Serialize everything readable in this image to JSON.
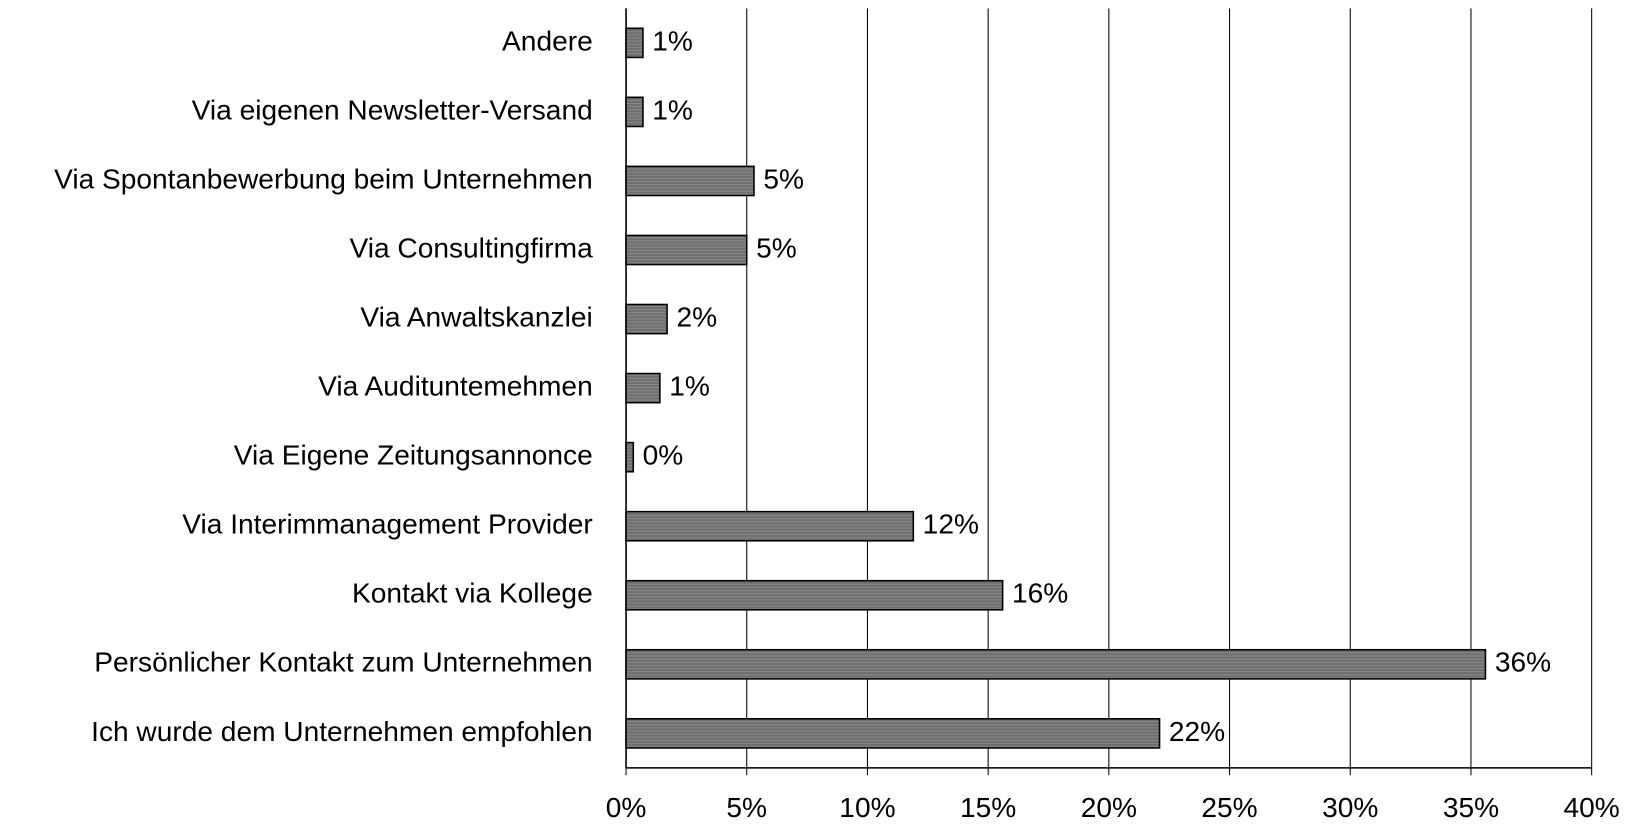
{
  "chart_data": {
    "type": "bar",
    "orientation": "horizontal",
    "categories": [
      "Andere",
      "Via eigenen Newsletter-Versand",
      "Via Spontanbewerbung beim Unternehmen",
      "Via Consultingfirma",
      "Via Anwaltskanzlei",
      "Via Audituntemehmen",
      "Via Eigene Zeitungsannonce",
      "Via Interimmanagement Provider",
      "Kontakt via Kollege",
      "Persönlicher Kontakt zum Unternehmen",
      "Ich wurde dem Unternehmen empfohlen"
    ],
    "values": [
      0.7,
      0.7,
      5.3,
      5.0,
      1.7,
      1.4,
      0.3,
      11.9,
      15.6,
      35.6,
      22.1
    ],
    "value_labels": [
      "1%",
      "1%",
      "5%",
      "5%",
      "2%",
      "1%",
      "0%",
      "12%",
      "16%",
      "36%",
      "22%"
    ],
    "color": "#6e6e6e",
    "xlim": [
      0,
      40
    ],
    "xticks": [
      {
        "value": 0,
        "label": "0%"
      },
      {
        "value": 5,
        "label": "5%"
      },
      {
        "value": 10,
        "label": "10%"
      },
      {
        "value": 15,
        "label": "15%"
      },
      {
        "value": 20,
        "label": "20%"
      },
      {
        "value": 25,
        "label": "25%"
      },
      {
        "value": 30,
        "label": "30%"
      },
      {
        "value": 35,
        "label": "35%"
      },
      {
        "value": 40,
        "label": "40%"
      }
    ],
    "grid": true
  }
}
